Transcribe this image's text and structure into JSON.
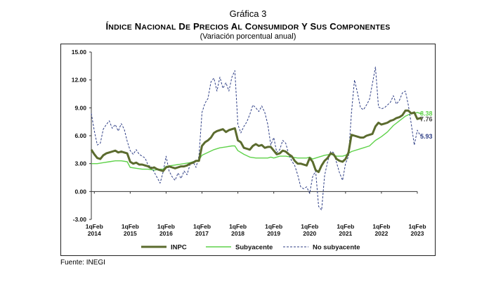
{
  "header": {
    "label": "Gráfica 3",
    "title": "Índice Nacional de Precios al Consumidor y sus componentes",
    "subtitle": "(Variación porcentual anual)"
  },
  "source": "Fuente: INEGI",
  "colors": {
    "inpc": "#5b6b2e",
    "subyacente": "#5fd24a",
    "no_subyacente": "#2f3f86",
    "label_inpc": "#4a4a4a",
    "label_sub": "#5fd24a",
    "label_nosub": "#2f3f86"
  },
  "chart_data": {
    "type": "line",
    "title": "Índice Nacional de Precios al Consumidor y sus componentes",
    "subtitle": "(Variación porcentual anual)",
    "xlabel": "",
    "ylabel": "",
    "x_start": "2014-01",
    "x_step": "quincena",
    "x_range": [
      "2014-01",
      "2023-02"
    ],
    "ylim": [
      -3.0,
      15.0
    ],
    "yticks": [
      "15.00",
      "12.00",
      "9.00",
      "6.00",
      "3.00",
      "0.00",
      "-3.00"
    ],
    "xticks": [
      {
        "label": [
          "1qFeb",
          "2014"
        ],
        "x": "2014-02"
      },
      {
        "label": [
          "1qFeb",
          "2015"
        ],
        "x": "2015-02"
      },
      {
        "label": [
          "1qFeb",
          "2016"
        ],
        "x": "2016-02"
      },
      {
        "label": [
          "1qFeb",
          "2017"
        ],
        "x": "2017-02"
      },
      {
        "label": [
          "1qFeb",
          "2018"
        ],
        "x": "2018-02"
      },
      {
        "label": [
          "1qFeb",
          "2019"
        ],
        "x": "2019-02"
      },
      {
        "label": [
          "1qFeb",
          "2020"
        ],
        "x": "2020-02"
      },
      {
        "label": [
          "1qFeb",
          "2021"
        ],
        "x": "2021-02"
      },
      {
        "label": [
          "1qFeb",
          "2022"
        ],
        "x": "2022-02"
      },
      {
        "label": [
          "1qFeb",
          "2023"
        ],
        "x": "2023-02"
      }
    ],
    "grid": false,
    "legend": "bottom",
    "end_labels": [
      {
        "series": "Subyacente",
        "text": "8.38"
      },
      {
        "series": "INPC",
        "text": "7.76"
      },
      {
        "series": "No subyacente",
        "text": "5.93"
      }
    ],
    "series": [
      {
        "name": "INPC",
        "style": "solid-thick",
        "points": [
          [
            0,
            4.5
          ],
          [
            2,
            4.0
          ],
          [
            4,
            3.6
          ],
          [
            6,
            3.5
          ],
          [
            8,
            3.9
          ],
          [
            10,
            4.1
          ],
          [
            12,
            4.2
          ],
          [
            14,
            4.3
          ],
          [
            16,
            4.4
          ],
          [
            18,
            4.2
          ],
          [
            20,
            4.3
          ],
          [
            22,
            4.2
          ],
          [
            24,
            4.1
          ],
          [
            26,
            3.2
          ],
          [
            28,
            3.0
          ],
          [
            30,
            3.1
          ],
          [
            32,
            2.9
          ],
          [
            34,
            2.9
          ],
          [
            36,
            2.8
          ],
          [
            38,
            2.7
          ],
          [
            40,
            2.5
          ],
          [
            42,
            2.6
          ],
          [
            44,
            2.4
          ],
          [
            46,
            2.3
          ],
          [
            48,
            2.2
          ],
          [
            50,
            2.6
          ],
          [
            52,
            2.7
          ],
          [
            54,
            2.6
          ],
          [
            56,
            2.5
          ],
          [
            58,
            2.6
          ],
          [
            60,
            2.7
          ],
          [
            62,
            2.7
          ],
          [
            64,
            2.8
          ],
          [
            66,
            3.0
          ],
          [
            68,
            3.1
          ],
          [
            70,
            3.3
          ],
          [
            72,
            3.3
          ],
          [
            74,
            4.9
          ],
          [
            76,
            5.3
          ],
          [
            78,
            5.5
          ],
          [
            80,
            5.8
          ],
          [
            82,
            6.3
          ],
          [
            84,
            6.5
          ],
          [
            86,
            6.6
          ],
          [
            88,
            6.7
          ],
          [
            90,
            6.4
          ],
          [
            92,
            6.6
          ],
          [
            94,
            6.7
          ],
          [
            96,
            6.8
          ],
          [
            98,
            5.5
          ],
          [
            100,
            5.3
          ],
          [
            102,
            4.7
          ],
          [
            104,
            4.6
          ],
          [
            106,
            4.5
          ],
          [
            108,
            4.9
          ],
          [
            110,
            5.1
          ],
          [
            112,
            4.9
          ],
          [
            114,
            5.0
          ],
          [
            116,
            4.7
          ],
          [
            118,
            4.8
          ],
          [
            120,
            4.8
          ],
          [
            122,
            4.4
          ],
          [
            124,
            4.0
          ],
          [
            126,
            4.1
          ],
          [
            128,
            4.4
          ],
          [
            130,
            4.3
          ],
          [
            132,
            4.0
          ],
          [
            134,
            3.8
          ],
          [
            136,
            3.3
          ],
          [
            138,
            3.0
          ],
          [
            140,
            3.0
          ],
          [
            142,
            2.9
          ],
          [
            144,
            2.8
          ],
          [
            146,
            3.6
          ],
          [
            148,
            3.2
          ],
          [
            150,
            2.3
          ],
          [
            152,
            2.1
          ],
          [
            154,
            2.8
          ],
          [
            156,
            3.3
          ],
          [
            158,
            3.6
          ],
          [
            160,
            4.1
          ],
          [
            162,
            4.0
          ],
          [
            164,
            3.5
          ],
          [
            166,
            3.3
          ],
          [
            168,
            3.2
          ],
          [
            170,
            3.5
          ],
          [
            172,
            4.2
          ],
          [
            174,
            6.1
          ],
          [
            176,
            6.0
          ],
          [
            178,
            5.9
          ],
          [
            180,
            5.8
          ],
          [
            182,
            5.8
          ],
          [
            184,
            6.0
          ],
          [
            186,
            6.1
          ],
          [
            188,
            6.2
          ],
          [
            190,
            7.0
          ],
          [
            192,
            7.4
          ],
          [
            194,
            7.2
          ],
          [
            196,
            7.3
          ],
          [
            198,
            7.4
          ],
          [
            200,
            7.6
          ],
          [
            202,
            7.7
          ],
          [
            204,
            7.9
          ],
          [
            206,
            8.0
          ],
          [
            208,
            8.2
          ],
          [
            210,
            8.7
          ],
          [
            212,
            8.7
          ],
          [
            214,
            8.4
          ],
          [
            216,
            8.5
          ],
          [
            218,
            7.8
          ],
          [
            220,
            7.9
          ],
          [
            221,
            7.76
          ]
        ]
      },
      {
        "name": "Subyacente",
        "style": "solid-thin",
        "points": [
          [
            0,
            3.0
          ],
          [
            4,
            3.0
          ],
          [
            8,
            3.1
          ],
          [
            12,
            3.2
          ],
          [
            16,
            3.3
          ],
          [
            20,
            3.3
          ],
          [
            24,
            3.2
          ],
          [
            26,
            2.6
          ],
          [
            30,
            2.5
          ],
          [
            34,
            2.4
          ],
          [
            38,
            2.4
          ],
          [
            42,
            2.3
          ],
          [
            46,
            2.4
          ],
          [
            48,
            2.4
          ],
          [
            50,
            2.7
          ],
          [
            54,
            2.8
          ],
          [
            58,
            2.9
          ],
          [
            62,
            3.0
          ],
          [
            66,
            3.1
          ],
          [
            70,
            3.3
          ],
          [
            72,
            3.4
          ],
          [
            74,
            3.9
          ],
          [
            78,
            4.2
          ],
          [
            82,
            4.5
          ],
          [
            86,
            4.7
          ],
          [
            90,
            4.8
          ],
          [
            94,
            4.9
          ],
          [
            96,
            4.9
          ],
          [
            98,
            4.4
          ],
          [
            102,
            4.0
          ],
          [
            106,
            3.7
          ],
          [
            110,
            3.6
          ],
          [
            114,
            3.6
          ],
          [
            118,
            3.6
          ],
          [
            120,
            3.7
          ],
          [
            122,
            3.6
          ],
          [
            126,
            3.8
          ],
          [
            130,
            3.8
          ],
          [
            134,
            3.7
          ],
          [
            138,
            3.6
          ],
          [
            142,
            3.6
          ],
          [
            144,
            3.6
          ],
          [
            146,
            3.7
          ],
          [
            148,
            3.5
          ],
          [
            152,
            3.7
          ],
          [
            156,
            3.9
          ],
          [
            160,
            4.0
          ],
          [
            164,
            3.8
          ],
          [
            168,
            3.8
          ],
          [
            170,
            3.9
          ],
          [
            174,
            4.3
          ],
          [
            178,
            4.5
          ],
          [
            182,
            4.7
          ],
          [
            186,
            4.9
          ],
          [
            190,
            5.5
          ],
          [
            192,
            5.7
          ],
          [
            194,
            5.9
          ],
          [
            198,
            6.4
          ],
          [
            202,
            7.1
          ],
          [
            206,
            7.6
          ],
          [
            210,
            8.1
          ],
          [
            214,
            8.4
          ],
          [
            216,
            8.4
          ],
          [
            218,
            8.5
          ],
          [
            220,
            8.4
          ],
          [
            221,
            8.38
          ]
        ]
      },
      {
        "name": "No subyacente",
        "style": "dashed",
        "points": [
          [
            0,
            8.4
          ],
          [
            2,
            6.5
          ],
          [
            4,
            5.0
          ],
          [
            6,
            5.2
          ],
          [
            8,
            6.7
          ],
          [
            10,
            7.2
          ],
          [
            12,
            7.6
          ],
          [
            14,
            6.8
          ],
          [
            16,
            7.2
          ],
          [
            18,
            6.5
          ],
          [
            20,
            7.3
          ],
          [
            22,
            6.7
          ],
          [
            24,
            5.4
          ],
          [
            26,
            4.4
          ],
          [
            28,
            4.0
          ],
          [
            30,
            4.5
          ],
          [
            32,
            4.0
          ],
          [
            34,
            3.8
          ],
          [
            36,
            3.6
          ],
          [
            38,
            2.8
          ],
          [
            40,
            2.7
          ],
          [
            42,
            2.1
          ],
          [
            44,
            1.5
          ],
          [
            46,
            0.9
          ],
          [
            48,
            2.1
          ],
          [
            50,
            3.8
          ],
          [
            52,
            2.2
          ],
          [
            54,
            1.6
          ],
          [
            56,
            1.2
          ],
          [
            58,
            2.0
          ],
          [
            60,
            1.4
          ],
          [
            62,
            2.2
          ],
          [
            64,
            1.8
          ],
          [
            66,
            2.9
          ],
          [
            68,
            3.2
          ],
          [
            70,
            2.6
          ],
          [
            72,
            3.8
          ],
          [
            74,
            8.5
          ],
          [
            76,
            9.5
          ],
          [
            78,
            10.0
          ],
          [
            80,
            11.8
          ],
          [
            82,
            12.2
          ],
          [
            84,
            10.8
          ],
          [
            86,
            12.3
          ],
          [
            88,
            11.1
          ],
          [
            90,
            11.7
          ],
          [
            92,
            10.8
          ],
          [
            94,
            12.3
          ],
          [
            96,
            13.0
          ],
          [
            98,
            7.2
          ],
          [
            100,
            6.3
          ],
          [
            102,
            7.0
          ],
          [
            104,
            7.5
          ],
          [
            106,
            8.3
          ],
          [
            108,
            9.3
          ],
          [
            110,
            9.0
          ],
          [
            112,
            8.6
          ],
          [
            114,
            9.2
          ],
          [
            116,
            8.5
          ],
          [
            118,
            7.2
          ],
          [
            120,
            5.0
          ],
          [
            122,
            5.8
          ],
          [
            124,
            4.2
          ],
          [
            126,
            4.5
          ],
          [
            128,
            5.5
          ],
          [
            130,
            5.2
          ],
          [
            132,
            4.0
          ],
          [
            134,
            3.3
          ],
          [
            136,
            2.8
          ],
          [
            138,
            1.8
          ],
          [
            140,
            0.5
          ],
          [
            142,
            0.3
          ],
          [
            144,
            0.5
          ],
          [
            146,
            -0.2
          ],
          [
            148,
            1.6
          ],
          [
            150,
            2.2
          ],
          [
            152,
            -1.6
          ],
          [
            154,
            -2.0
          ],
          [
            156,
            1.7
          ],
          [
            158,
            3.2
          ],
          [
            160,
            4.3
          ],
          [
            162,
            4.2
          ],
          [
            164,
            3.1
          ],
          [
            166,
            2.0
          ],
          [
            168,
            1.2
          ],
          [
            170,
            3.0
          ],
          [
            172,
            3.8
          ],
          [
            174,
            8.5
          ],
          [
            176,
            12.0
          ],
          [
            178,
            10.6
          ],
          [
            180,
            9.0
          ],
          [
            182,
            8.8
          ],
          [
            184,
            9.3
          ],
          [
            186,
            9.9
          ],
          [
            188,
            11.6
          ],
          [
            190,
            13.4
          ],
          [
            192,
            9.1
          ],
          [
            194,
            8.9
          ],
          [
            196,
            9.0
          ],
          [
            198,
            9.3
          ],
          [
            200,
            9.6
          ],
          [
            202,
            10.3
          ],
          [
            204,
            9.4
          ],
          [
            206,
            9.8
          ],
          [
            208,
            10.6
          ],
          [
            210,
            10.8
          ],
          [
            212,
            9.3
          ],
          [
            214,
            7.2
          ],
          [
            216,
            5.0
          ],
          [
            218,
            6.6
          ],
          [
            220,
            6.0
          ],
          [
            221,
            5.93
          ]
        ]
      }
    ]
  }
}
